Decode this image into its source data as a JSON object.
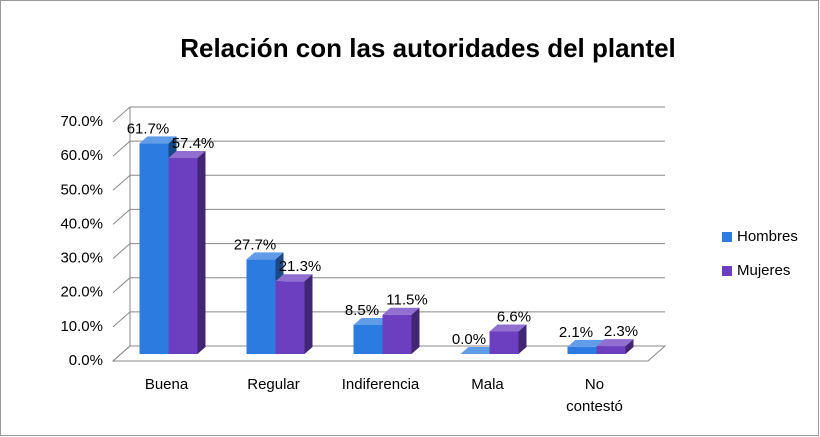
{
  "chart_data": {
    "type": "bar3d",
    "title": "Relación con las autoridades del plantel",
    "categories": [
      "Buena",
      "Regular",
      "Indiferencia",
      "Mala",
      "No contestó"
    ],
    "series": [
      {
        "name": "Hombres",
        "color": "#2b7be0",
        "values": [
          61.7,
          27.7,
          8.5,
          0.0,
          2.1
        ],
        "value_labels": [
          "61.7%",
          "27.7%",
          "8.5%",
          "0.0%",
          "2.1%"
        ]
      },
      {
        "name": "Mujeres",
        "color": "#6b3fc0",
        "values": [
          57.4,
          21.3,
          11.5,
          6.6,
          2.3
        ],
        "value_labels": [
          "57.4%",
          "21.3%",
          "11.5%",
          "6.6%",
          "2.3%"
        ]
      }
    ],
    "ylim": [
      0,
      70
    ],
    "yticks": [
      {
        "value": 0,
        "label": "0.0%"
      },
      {
        "value": 10,
        "label": "10.0%"
      },
      {
        "value": 20,
        "label": "20.0%"
      },
      {
        "value": 30,
        "label": "30.0%"
      },
      {
        "value": 40,
        "label": "40.0%"
      },
      {
        "value": 50,
        "label": "50.0%"
      },
      {
        "value": 60,
        "label": "60.0%"
      },
      {
        "value": 70,
        "label": "70.0%"
      }
    ],
    "grid": true,
    "legend": "right"
  }
}
